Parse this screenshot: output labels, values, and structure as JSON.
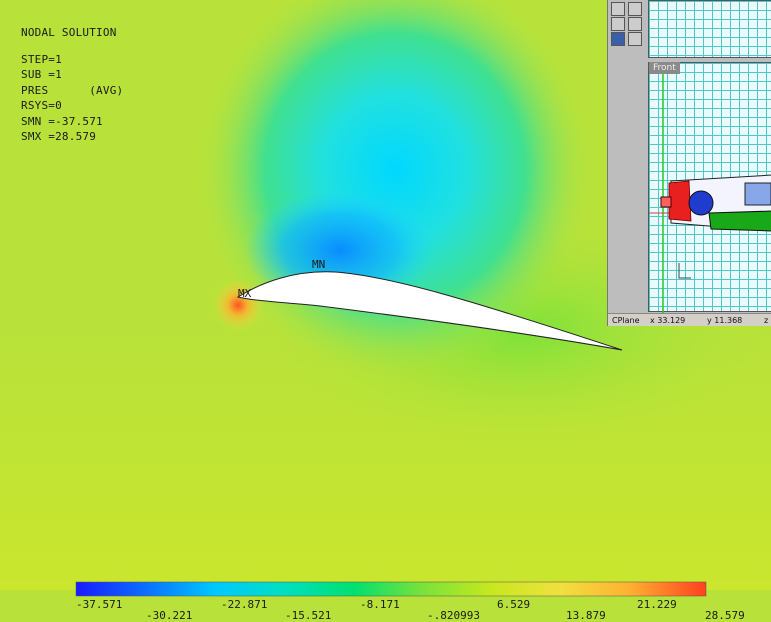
{
  "solution": {
    "title": "NODAL SOLUTION",
    "lines": [
      "STEP=1",
      "SUB =1",
      "PRES      (AVG)",
      "RSYS=0",
      "SMN =-37.571",
      "SMX =28.579"
    ]
  },
  "markers": {
    "min_label": "MN",
    "max_label": "MX"
  },
  "legend": {
    "top_labels": [
      "-37.571",
      "-22.871",
      "-8.171",
      "6.529",
      "21.229"
    ],
    "bottom_labels": [
      "-30.221",
      "-15.521",
      "-.820993",
      "13.879",
      "28.579"
    ],
    "colors": [
      "#1a1aff",
      "#0a6fff",
      "#00c8ff",
      "#00e0c0",
      "#00e070",
      "#7ae23a",
      "#c8e81e",
      "#f0e040",
      "#ffb030",
      "#ff4020"
    ]
  },
  "inset": {
    "viewport_title": "Front",
    "status": {
      "cplane": "CPlane",
      "x": "x 33.129",
      "y": "y 11.368",
      "z": "z"
    }
  }
}
